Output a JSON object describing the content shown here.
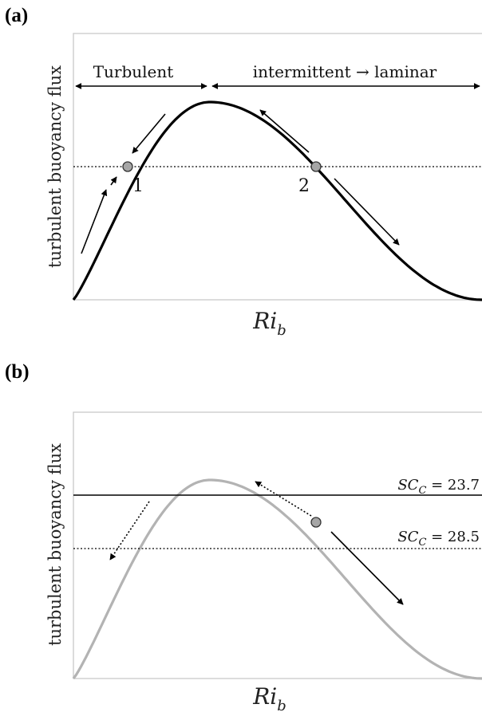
{
  "panel_a": {
    "label": "(a)",
    "ylabel": "turbulent buoyancy flux",
    "xlabel_main": "Ri",
    "xlabel_sub": "b",
    "regime_left": "Turbulent",
    "regime_right": "intermittent → laminar",
    "point_1": "1",
    "point_2": "2"
  },
  "panel_b": {
    "label": "(b)",
    "ylabel": "turbulent buoyancy flux",
    "xlabel_main": "Ri",
    "xlabel_sub": "b",
    "line_1": {
      "sym": "SC",
      "sub": "C",
      "eq": " = 23.7"
    },
    "line_2": {
      "sym": "SC",
      "sub": "C",
      "eq": " = 28.5"
    }
  },
  "colors": {
    "curve_a": "#000000",
    "curve_b": "#b3b3b3",
    "marker_fill": "#a6a6a6",
    "frame": "#c8c8c8"
  }
}
